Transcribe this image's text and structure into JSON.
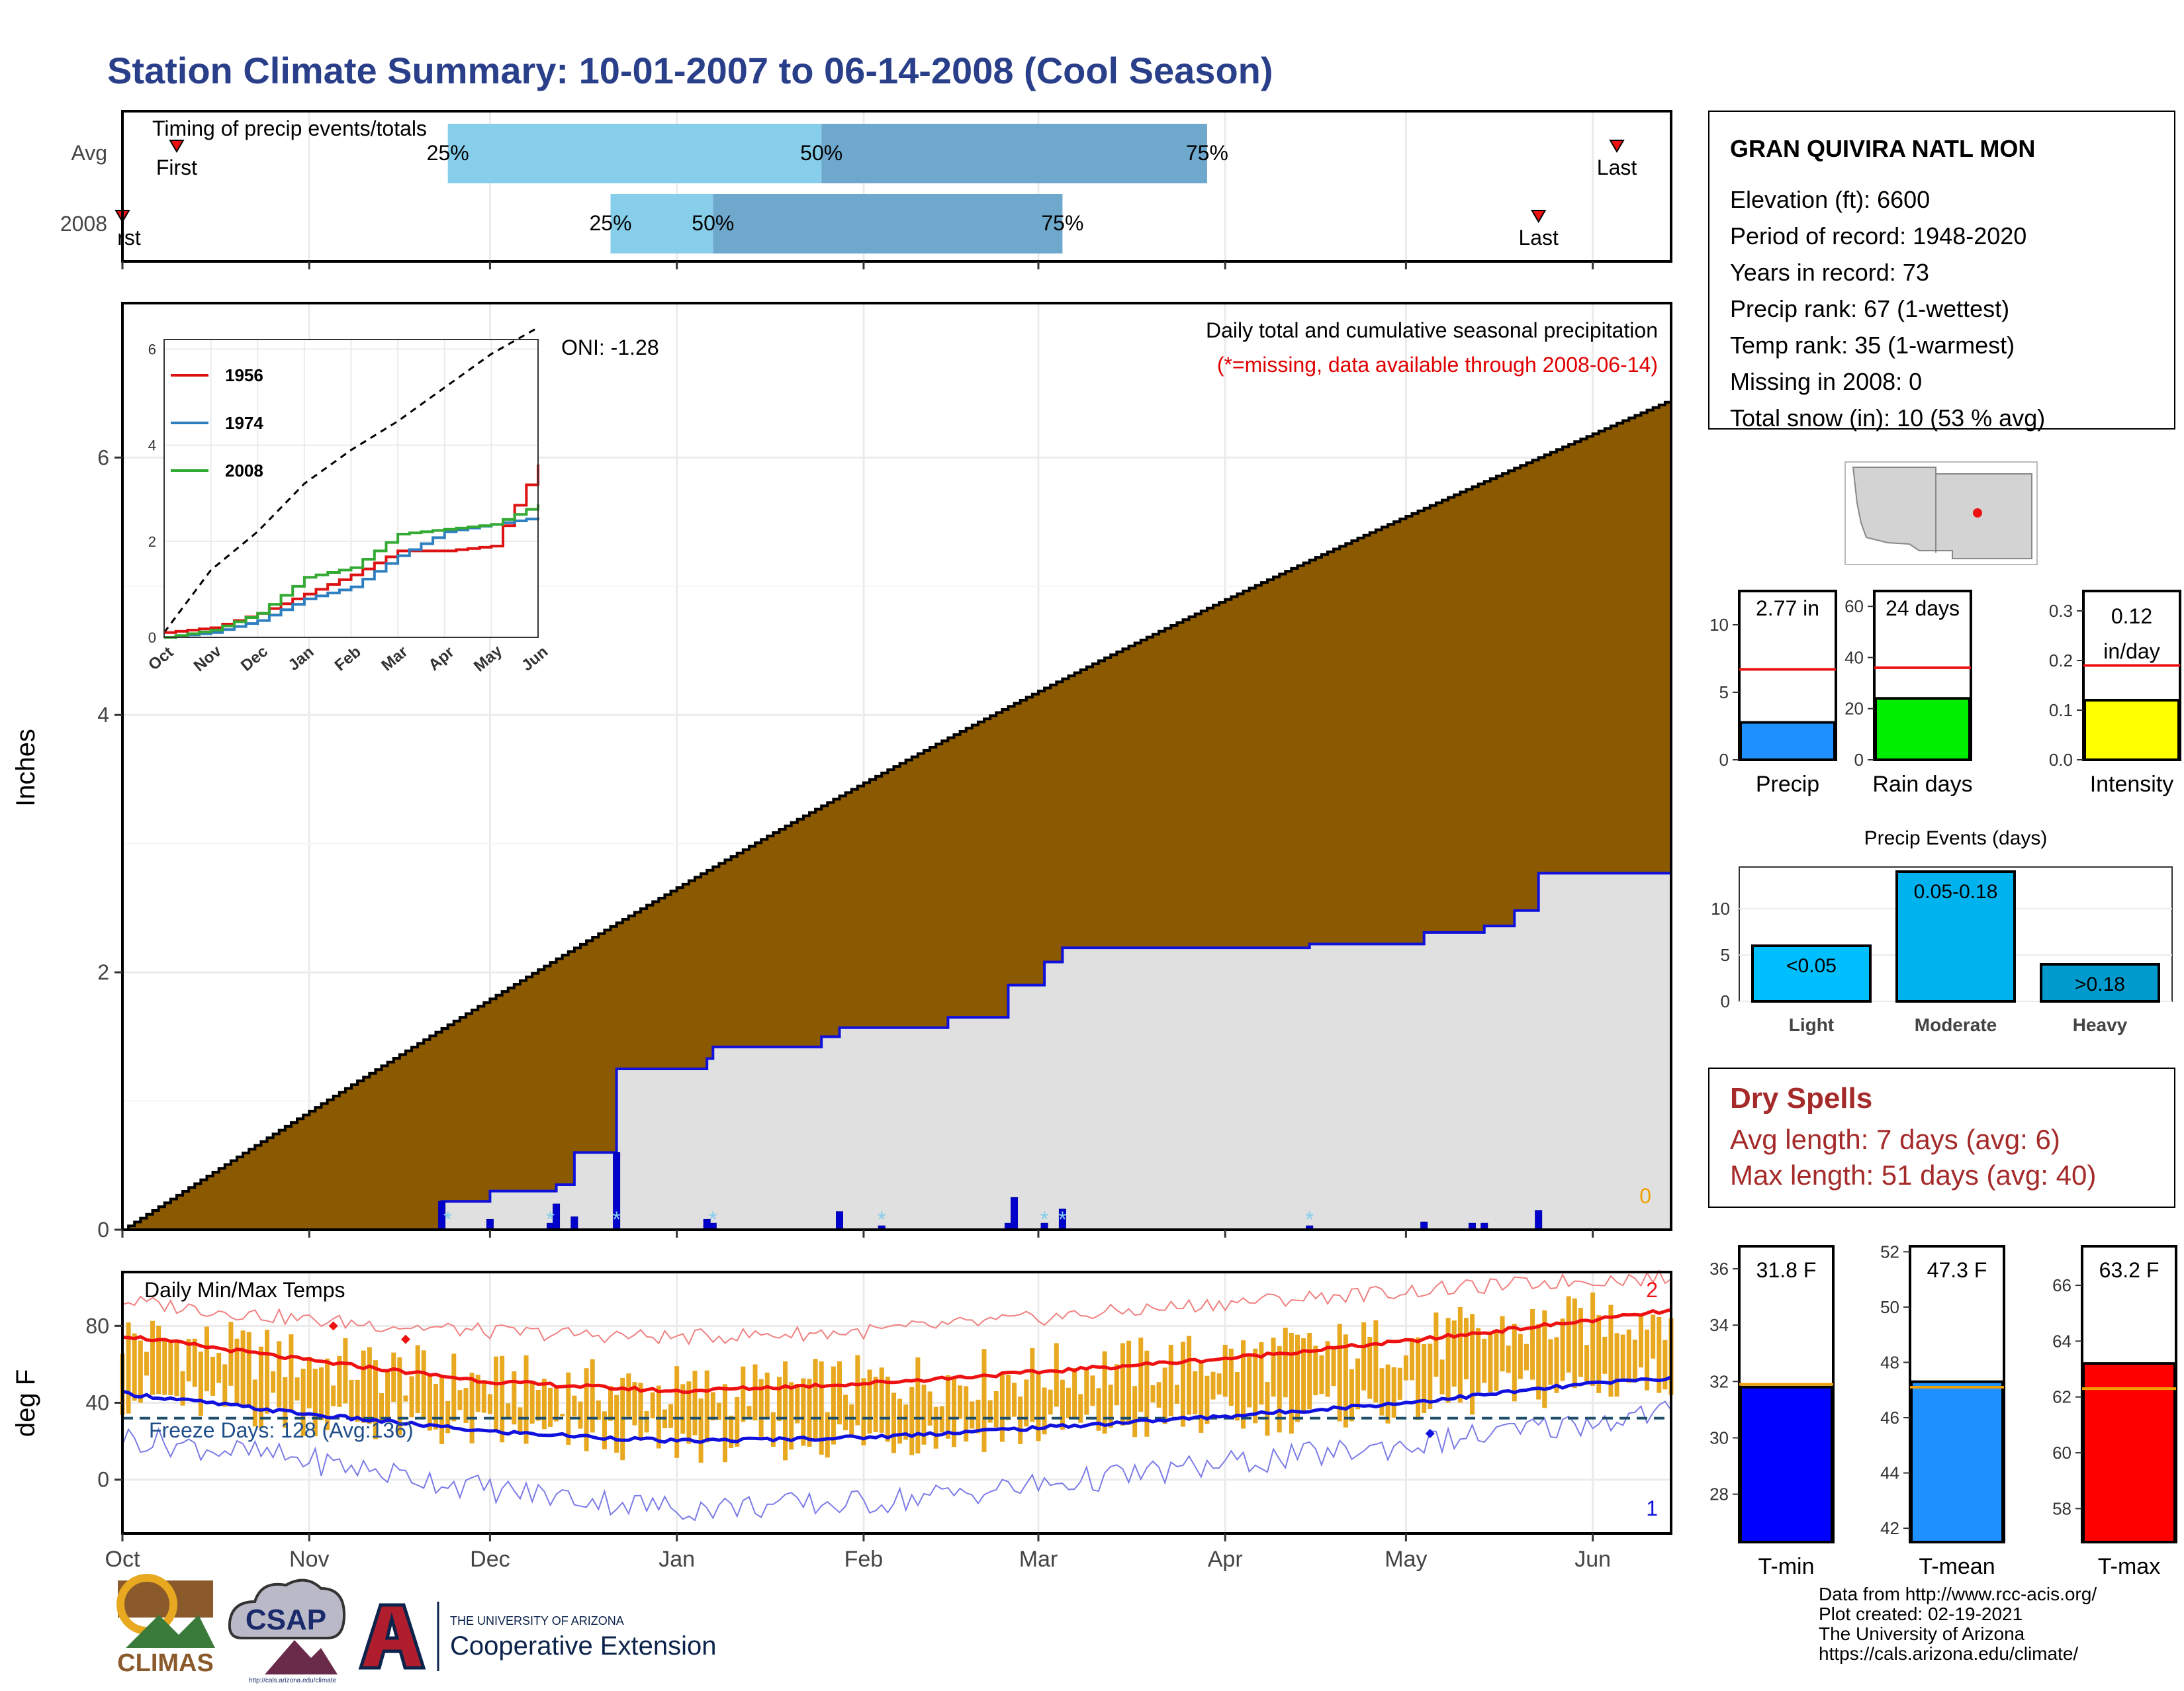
{
  "page_title": "Station Climate Summary: 10-01-2007 to 06-14-2008 (Cool Season)",
  "months": [
    "Oct",
    "Nov",
    "Dec",
    "Jan",
    "Feb",
    "Mar",
    "Apr",
    "May",
    "Jun"
  ],
  "colors": {
    "title": "#2a3f8a",
    "cumulative_fill": "#8b5a00",
    "current_fill": "#e0e0e0",
    "current_line": "#1010dd",
    "bar_light": "#87ceeb",
    "bar_dark": "#6fa8cd",
    "temp_bar": "#e8a820",
    "tmax_line": "#ee1111",
    "tmin_line": "#1111dd",
    "dry_spell": "#a52a2a"
  },
  "timing": {
    "title": "Timing of precip events/totals",
    "rows": [
      "Avg",
      "2008"
    ],
    "avg": {
      "first": "First",
      "last": "Last",
      "p25": "25%",
      "p50": "50%",
      "p75": "75%"
    },
    "y2008": {
      "first": "rst",
      "last": "Last",
      "p25": "25%",
      "p50": "50%",
      "p75": "75%"
    }
  },
  "precip_panel": {
    "ylabel": "Inches",
    "yticks": [
      "0",
      "2",
      "4",
      "6"
    ],
    "oni": "ONI: -1.28",
    "caption1": "Daily total and cumulative seasonal precipitation",
    "caption2": "(*=missing, data available through 2008-06-14)",
    "missing_count": "0"
  },
  "inset": {
    "yticks": [
      "0",
      "2",
      "4",
      "6"
    ],
    "legend": [
      "1956",
      "1974",
      "2008"
    ],
    "legend_colors": [
      "#dd1111",
      "#2e7fc0",
      "#33aa33"
    ]
  },
  "temp_panel": {
    "ylabel": "deg F",
    "yticks": [
      "0",
      "40",
      "80"
    ],
    "title": "Daily Min/Max Temps",
    "freeze": "Freeze Days: 128 (Avg:136)",
    "max_records": "2",
    "min_records": "1"
  },
  "station": {
    "name": "GRAN QUIVIRA NATL MON",
    "lines": [
      "Elevation (ft): 6600",
      "Period of record: 1948-2020",
      "Years in record: 73",
      "Precip rank: 67 (1-wettest)",
      "Temp rank: 35 (1-warmest)",
      "Missing in 2008: 0",
      "Total snow (in): 10 (53 % avg)"
    ]
  },
  "mini_bars": [
    {
      "label": "Precip",
      "value_text": "2.77 in",
      "ticks": [
        "0",
        "5",
        "10"
      ],
      "color": "#1e90ff"
    },
    {
      "label": "Rain days",
      "value_text": "24 days",
      "ticks": [
        "0",
        "20",
        "40",
        "60"
      ],
      "color": "#00ee00"
    },
    {
      "label": "Intensity",
      "value_text": "0.12 in/day",
      "ticks": [
        "0.0",
        "0.1",
        "0.2",
        "0.3"
      ],
      "color": "#ffff00"
    }
  ],
  "precip_events": {
    "title": "Precip Events (days)",
    "categories": [
      "Light",
      "Moderate",
      "Heavy"
    ],
    "bar_labels": [
      "<0.05",
      "0.05-0.18",
      ">0.18"
    ],
    "yticks": [
      "0",
      "5",
      "10"
    ]
  },
  "dry_spells": {
    "title": "Dry Spells",
    "avg": "Avg length: 7 days (avg: 6)",
    "max": "Max length: 51 days (avg: 40)"
  },
  "temp_bars": [
    {
      "label": "T-min",
      "value_text": "31.8 F",
      "ticks": [
        "28",
        "30",
        "32",
        "34",
        "36"
      ],
      "color": "#0000ff"
    },
    {
      "label": "T-mean",
      "value_text": "47.3 F",
      "ticks": [
        "42",
        "44",
        "46",
        "48",
        "50",
        "52"
      ],
      "color": "#1e90ff"
    },
    {
      "label": "T-max",
      "value_text": "63.2 F",
      "ticks": [
        "58",
        "60",
        "62",
        "64",
        "66"
      ],
      "color": "#ff0000"
    }
  ],
  "footer": {
    "lines": [
      "Data from http://www.rcc-acis.org/",
      "Plot created: 02-19-2021",
      "The University of Arizona",
      "https://cals.arizona.edu/climate/"
    ]
  },
  "logos": {
    "climas": "CLIMAS",
    "csap": "CSAP",
    "csap_url": "http://cals.arizona.edu/climate",
    "ua_small": "THE UNIVERSITY OF ARIZONA",
    "ua_big": "Cooperative Extension"
  },
  "chart_data": [
    {
      "type": "bar",
      "title": "Timing of precip events/totals",
      "categories": [
        "Avg",
        "2008"
      ],
      "series": [
        {
          "name": "Avg",
          "first": "2007-10-10",
          "p25": "2007-11-24",
          "p50": "2008-01-25",
          "p75": "2008-03-29",
          "last": "2008-06-05"
        },
        {
          "name": "2008",
          "first": "2007-10-01",
          "p25": "2007-12-21",
          "p50": "2008-01-07",
          "p75": "2008-03-05",
          "last": "2008-05-23"
        }
      ]
    },
    {
      "type": "area",
      "title": "Daily total and cumulative seasonal precipitation",
      "ylabel": "Inches",
      "ylim": [
        0,
        7.2
      ],
      "x_range": [
        "2007-10-01",
        "2008-06-14"
      ],
      "average_cumulative_final": 6.45,
      "series": [
        {
          "name": "Cumulative 2007-2008",
          "x": [
            "2007-10-01",
            "2007-11-23",
            "2007-12-01",
            "2007-12-12",
            "2007-12-15",
            "2007-12-22",
            "2008-01-06",
            "2008-01-07",
            "2008-01-25",
            "2008-01-28",
            "2008-02-15",
            "2008-02-25",
            "2008-03-02",
            "2008-03-05",
            "2008-04-15",
            "2008-05-04",
            "2008-05-14",
            "2008-05-19",
            "2008-05-23",
            "2008-06-14"
          ],
          "y": [
            0.0,
            0.22,
            0.3,
            0.35,
            0.6,
            1.25,
            1.33,
            1.42,
            1.5,
            1.57,
            1.65,
            1.9,
            2.08,
            2.19,
            2.22,
            2.31,
            2.36,
            2.48,
            2.77,
            2.77
          ]
        }
      ],
      "daily": {
        "x": [
          "2007-11-23",
          "2007-12-01",
          "2007-12-11",
          "2007-12-12",
          "2007-12-15",
          "2007-12-22",
          "2008-01-06",
          "2008-01-07",
          "2008-01-28",
          "2008-02-04",
          "2008-02-25",
          "2008-02-26",
          "2008-03-02",
          "2008-03-05",
          "2008-04-15",
          "2008-05-04",
          "2008-05-12",
          "2008-05-14",
          "2008-05-23"
        ],
        "y": [
          0.22,
          0.08,
          0.05,
          0.2,
          0.1,
          0.6,
          0.08,
          0.05,
          0.14,
          0.03,
          0.05,
          0.25,
          0.05,
          0.16,
          0.03,
          0.06,
          0.05,
          0.05,
          0.15
        ]
      },
      "snow_days": [
        "2007-11-24",
        "2007-12-11",
        "2007-12-22",
        "2008-01-07",
        "2008-02-04",
        "2008-03-02",
        "2008-03-05",
        "2008-04-15"
      ]
    },
    {
      "type": "line",
      "title": "Inset cumulative precipitation",
      "x": [
        "Oct",
        "Nov",
        "Dec",
        "Jan",
        "Feb",
        "Mar",
        "Apr",
        "May",
        "Jun"
      ],
      "ylim": [
        0,
        6.2
      ],
      "series": [
        {
          "name": "1956",
          "values": [
            0.1,
            0.2,
            0.5,
            0.9,
            1.3,
            1.8,
            1.8,
            1.9,
            3.6
          ]
        },
        {
          "name": "1974",
          "values": [
            0.0,
            0.1,
            0.35,
            0.8,
            1.05,
            1.7,
            2.2,
            2.35,
            2.5
          ]
        },
        {
          "name": "2008",
          "values": [
            0.0,
            0.15,
            0.5,
            1.25,
            1.45,
            2.15,
            2.25,
            2.35,
            2.77
          ]
        }
      ],
      "average_cumulative": [
        0.1,
        1.4,
        2.2,
        3.2,
        3.9,
        4.5,
        5.2,
        5.9,
        6.45
      ]
    },
    {
      "type": "bar",
      "title": "Daily Min/Max Temps",
      "ylabel": "deg F",
      "ylim": [
        -28,
        108
      ],
      "x_range": [
        "2007-10-01",
        "2008-06-14"
      ],
      "freeze_threshold": 32,
      "normals": {
        "x": [
          "2007-10-01",
          "2007-11-01",
          "2007-12-01",
          "2008-01-01",
          "2008-02-01",
          "2008-03-01",
          "2008-04-01",
          "2008-05-01",
          "2008-06-01",
          "2008-06-14"
        ],
        "tmax": [
          75,
          62,
          51,
          46,
          50,
          56,
          63,
          72,
          83,
          88
        ],
        "tmin": [
          45,
          34,
          25,
          20,
          22,
          27,
          33,
          40,
          50,
          53
        ],
        "record_max": [
          93,
          83,
          77,
          74,
          77,
          84,
          92,
          98,
          104,
          105
        ],
        "record_min": [
          22,
          10,
          -5,
          -15,
          -12,
          -3,
          8,
          18,
          30,
          36
        ]
      }
    },
    {
      "type": "bar",
      "title": "Precip Events (days)",
      "categories": [
        "Light",
        "Moderate",
        "Heavy"
      ],
      "values": [
        6,
        14,
        4
      ],
      "ylim": [
        0,
        14.5
      ]
    },
    {
      "type": "bar",
      "title": "Season summary",
      "categories": [
        "Precip",
        "Rain days",
        "Intensity"
      ],
      "values": [
        2.77,
        24,
        0.12
      ],
      "averages": [
        6.7,
        36,
        0.19
      ],
      "ylims": [
        [
          0,
          12.5
        ],
        [
          0,
          66
        ],
        [
          0,
          0.34
        ]
      ]
    },
    {
      "type": "bar",
      "title": "Season temperatures",
      "categories": [
        "T-min",
        "T-mean",
        "T-max"
      ],
      "values": [
        31.8,
        47.3,
        63.2
      ],
      "averages": [
        31.9,
        47.1,
        62.3
      ],
      "ylims": [
        [
          26.3,
          36.8
        ],
        [
          41.5,
          52.2
        ],
        [
          56.8,
          67.4
        ]
      ]
    }
  ]
}
